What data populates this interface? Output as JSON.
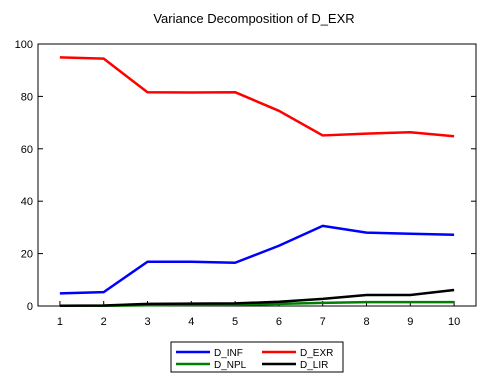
{
  "chart_data": {
    "type": "line",
    "title": "Variance Decomposition of D_EXR",
    "xlabel": "",
    "ylabel": "",
    "x": [
      1,
      2,
      3,
      4,
      5,
      6,
      7,
      8,
      9,
      10
    ],
    "xlim": [
      0.5,
      10.5
    ],
    "ylim": [
      0,
      100
    ],
    "yticks": [
      0,
      20,
      40,
      60,
      80,
      100
    ],
    "grid": false,
    "legend_position": "bottom",
    "series": [
      {
        "name": "D_INF",
        "color": "#0000ff",
        "values": [
          4.8,
          5.3,
          16.9,
          16.9,
          16.5,
          23.0,
          30.6,
          28.0,
          27.6,
          27.2
        ]
      },
      {
        "name": "D_EXR",
        "color": "#ff0000",
        "values": [
          94.9,
          94.4,
          81.6,
          81.5,
          81.6,
          74.5,
          65.1,
          65.8,
          66.3,
          64.8
        ]
      },
      {
        "name": "D_NPL",
        "color": "#008000",
        "values": [
          0.1,
          0.1,
          0.3,
          0.4,
          0.5,
          0.8,
          1.2,
          1.5,
          1.5,
          1.5
        ]
      },
      {
        "name": "D_LIR",
        "color": "#000000",
        "values": [
          0.1,
          0.2,
          0.8,
          0.9,
          1.0,
          1.6,
          2.7,
          4.2,
          4.2,
          6.1
        ]
      }
    ]
  }
}
